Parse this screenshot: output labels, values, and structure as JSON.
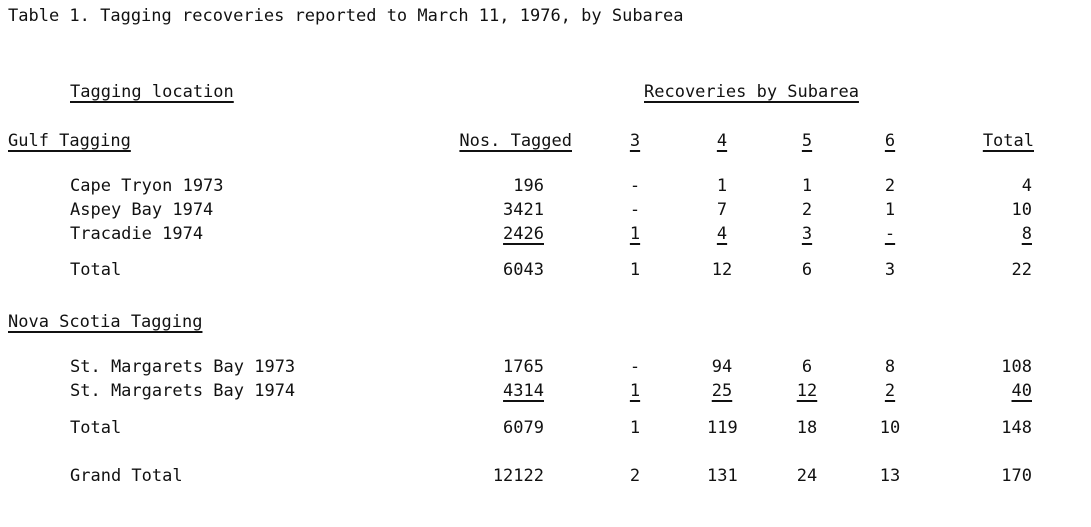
{
  "title": "Table 1.  Tagging recoveries reported to March 11, 1976, by Subarea",
  "headers": {
    "tagging_location": "Tagging location",
    "recoveries_by_subarea": "Recoveries by Subarea",
    "nos_tagged": "Nos. Tagged",
    "subarea_3": "3",
    "subarea_4": "4",
    "subarea_5": "5",
    "subarea_6": "6",
    "total": "Total"
  },
  "sections": [
    {
      "name": "Gulf Tagging",
      "rows": [
        {
          "location": "Cape Tryon 1973",
          "tagged": "196",
          "s3": "-",
          "s4": "1",
          "s5": "1",
          "s6": "2",
          "total": "4"
        },
        {
          "location": "Aspey Bay 1974",
          "tagged": "3421",
          "s3": "-",
          "s4": "7",
          "s5": "2",
          "s6": "1",
          "total": "10"
        },
        {
          "location": "Tracadie 1974",
          "tagged": "2426",
          "s3": "1",
          "s4": "4",
          "s5": "3",
          "s6": "-",
          "total": "8"
        }
      ],
      "subtotal": {
        "label": "Total",
        "tagged": "6043",
        "s3": "1",
        "s4": "12",
        "s5": "6",
        "s6": "3",
        "total": "22"
      }
    },
    {
      "name": "Nova Scotia Tagging",
      "rows": [
        {
          "location": "St. Margarets Bay 1973",
          "tagged": "1765",
          "s3": "-",
          "s4": "94",
          "s5": "6",
          "s6": "8",
          "total": "108"
        },
        {
          "location": "St. Margarets Bay 1974",
          "tagged": "4314",
          "s3": "1",
          "s4": "25",
          "s5": "12",
          "s6": "2",
          "total": "40"
        }
      ],
      "subtotal": {
        "label": "Total",
        "tagged": "6079",
        "s3": "1",
        "s4": "119",
        "s5": "18",
        "s6": "10",
        "total": "148"
      }
    }
  ],
  "grand_total": {
    "label": "Grand Total",
    "tagged": "12122",
    "s3": "2",
    "s4": "131",
    "s5": "24",
    "s6": "13",
    "total": "170"
  }
}
